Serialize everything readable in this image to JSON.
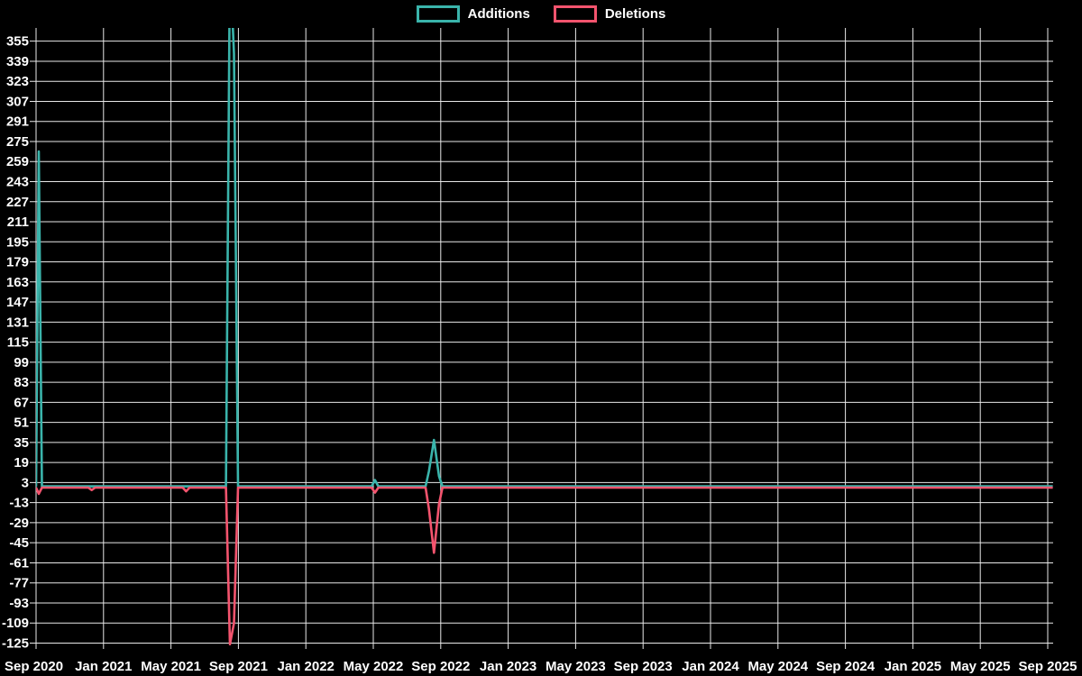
{
  "legend": [
    {
      "label": "Additions",
      "color": "#3ab4ab"
    },
    {
      "label": "Deletions",
      "color": "#f4546e"
    }
  ],
  "colors": {
    "background": "#000000",
    "grid": "#e8e8e8",
    "axis_text": "#ffffff",
    "additions": "#3ab4ab",
    "deletions": "#f4546e"
  },
  "chart_data": {
    "type": "line",
    "title": "",
    "xlabel": "",
    "ylabel": "",
    "legend_position": "top-center",
    "grid": true,
    "x_axis": {
      "unit": "months_since_sep_2020",
      "tick_interval_months": 4,
      "range_months": [
        0,
        60.3
      ],
      "ticks": [
        "Sep 2020",
        "Jan 2021",
        "May 2021",
        "Sep 2021",
        "Jan 2022",
        "May 2022",
        "Sep 2022",
        "Jan 2023",
        "May 2023",
        "Sep 2023",
        "Jan 2024",
        "May 2024",
        "Sep 2024",
        "Jan 2025",
        "May 2025",
        "Sep 2025"
      ]
    },
    "y_axis": {
      "ticks": [
        355,
        339,
        323,
        307,
        291,
        275,
        259,
        243,
        227,
        211,
        195,
        179,
        163,
        147,
        131,
        115,
        99,
        83,
        67,
        51,
        35,
        19,
        3,
        -13,
        -29,
        -45,
        -61,
        -77,
        -93,
        -109,
        -125
      ],
      "visible_min": -131,
      "visible_max": 365,
      "note": "big additions spike at Sep 2021 is clipped at top of plot (value exceeds 365)"
    },
    "series": [
      {
        "name": "Additions",
        "color": "#3ab4ab",
        "points": [
          [
            0,
            0
          ],
          [
            0.16,
            267
          ],
          [
            0.35,
            0
          ],
          [
            3.1,
            0
          ],
          [
            3.3,
            0
          ],
          [
            3.5,
            0
          ],
          [
            8.7,
            0
          ],
          [
            8.9,
            0
          ],
          [
            9.1,
            0
          ],
          [
            11.26,
            0
          ],
          [
            11.5,
            420
          ],
          [
            11.74,
            345
          ],
          [
            11.98,
            0
          ],
          [
            19.9,
            0
          ],
          [
            20.1,
            5
          ],
          [
            20.3,
            0
          ],
          [
            23.1,
            0
          ],
          [
            23.3,
            12
          ],
          [
            23.6,
            37
          ],
          [
            23.9,
            8
          ],
          [
            24.1,
            0
          ],
          [
            60.3,
            0
          ]
        ]
      },
      {
        "name": "Deletions",
        "color": "#f4546e",
        "points": [
          [
            0,
            -1
          ],
          [
            0.16,
            -6
          ],
          [
            0.35,
            -1
          ],
          [
            3.1,
            -1
          ],
          [
            3.3,
            -3
          ],
          [
            3.5,
            -1
          ],
          [
            8.7,
            -1
          ],
          [
            8.9,
            -4
          ],
          [
            9.1,
            -1
          ],
          [
            11.26,
            -1
          ],
          [
            11.5,
            -126
          ],
          [
            11.74,
            -109
          ],
          [
            11.98,
            -1
          ],
          [
            19.9,
            -1
          ],
          [
            20.1,
            -5
          ],
          [
            20.3,
            -1
          ],
          [
            23.1,
            -1
          ],
          [
            23.3,
            -18
          ],
          [
            23.6,
            -53
          ],
          [
            23.9,
            -14
          ],
          [
            24.1,
            -1
          ],
          [
            60.3,
            -1
          ]
        ]
      }
    ]
  }
}
